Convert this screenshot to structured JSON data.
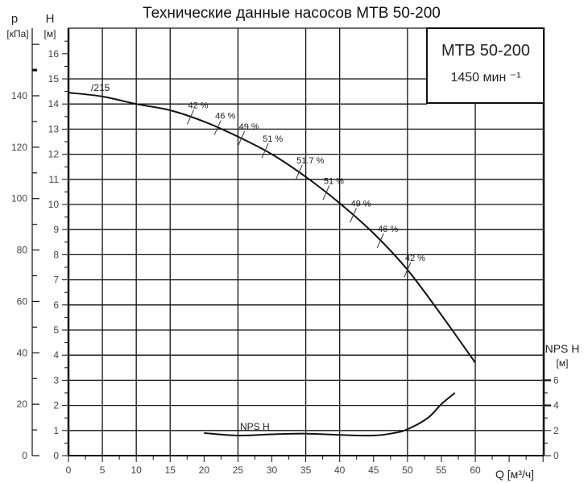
{
  "chart_data": {
    "type": "line",
    "title": "Технические данные насосов MTB 50-200",
    "legend_box": {
      "model": "MTB 50-200",
      "speed": "1450 мин ⁻¹"
    },
    "xlabel": "Q [м³/ч]",
    "xlim": [
      0,
      70
    ],
    "x_ticks": [
      0,
      5,
      10,
      15,
      20,
      25,
      30,
      35,
      40,
      45,
      50,
      55,
      60
    ],
    "y_left": {
      "label": "H",
      "unit": "[м]",
      "ylim": [
        0,
        17
      ],
      "ticks": [
        0,
        1,
        2,
        3,
        4,
        5,
        6,
        7,
        8,
        9,
        10,
        11,
        12,
        13,
        14,
        15,
        16
      ]
    },
    "y_pressure": {
      "label": "p",
      "unit": "[кПа]",
      "ticks": [
        0,
        20,
        40,
        60,
        80,
        100,
        120,
        140
      ]
    },
    "y_right": {
      "label": "NPS H",
      "unit": "[м]",
      "ticks": [
        0,
        2,
        4,
        6
      ]
    },
    "grid": true,
    "series": [
      {
        "name": "/215",
        "axis": "H",
        "x": [
          0,
          5,
          10,
          15,
          20,
          25,
          30,
          35,
          40,
          45,
          50,
          55,
          60
        ],
        "y": [
          14.45,
          14.3,
          14.0,
          13.75,
          13.3,
          12.7,
          12.0,
          11.1,
          10.05,
          8.85,
          7.4,
          5.6,
          3.7
        ]
      },
      {
        "name": "NPS H",
        "axis": "NPSH",
        "x": [
          20,
          25,
          30,
          35,
          40,
          45,
          48,
          50,
          53,
          55,
          57
        ],
        "y": [
          1.8,
          1.6,
          1.7,
          1.75,
          1.65,
          1.6,
          1.8,
          2.1,
          3.0,
          4.1,
          5.0
        ]
      }
    ],
    "efficiency_marks": [
      {
        "q": 18,
        "label": "42 %"
      },
      {
        "q": 22,
        "label": "46 %"
      },
      {
        "q": 25.5,
        "label": "49 %"
      },
      {
        "q": 29,
        "label": "51 %"
      },
      {
        "q": 34,
        "label": "51.7 %"
      },
      {
        "q": 38,
        "label": "51 %"
      },
      {
        "q": 42,
        "label": "49 %"
      },
      {
        "q": 46,
        "label": "46 %"
      },
      {
        "q": 50,
        "label": "42 %"
      }
    ],
    "colors": {
      "line": "#111111",
      "grid": "#111111",
      "text": "#222222"
    }
  }
}
